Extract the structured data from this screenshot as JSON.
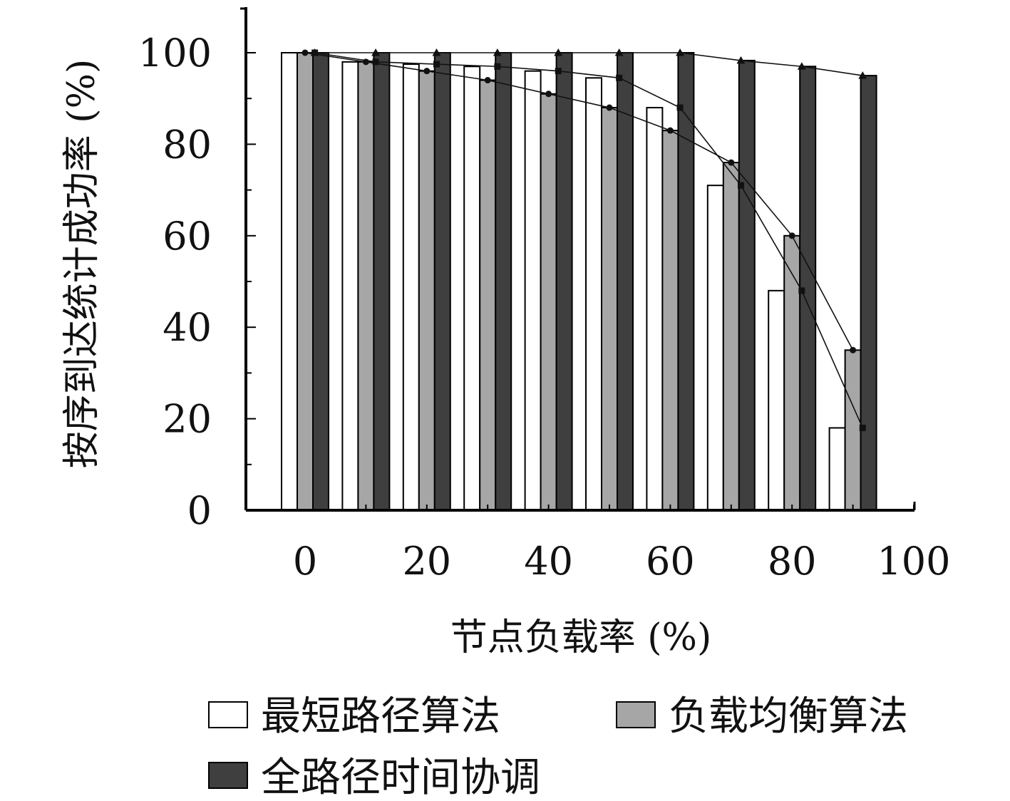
{
  "chart_data": {
    "type": "bar",
    "title": "",
    "xlabel": "节点负载率 (%)",
    "ylabel": "按序到达统计成功率 (%)",
    "x": [
      0,
      10,
      20,
      30,
      40,
      50,
      60,
      70,
      80,
      90
    ],
    "xlim": [
      0,
      100
    ],
    "ylim": [
      0,
      100
    ],
    "xticks": [
      "0",
      "20",
      "40",
      "60",
      "80",
      "100"
    ],
    "yticks": [
      "0",
      "20",
      "40",
      "60",
      "80",
      "100"
    ],
    "grid": false,
    "legend_position": "bottom",
    "series": [
      {
        "name": "最短路径算法",
        "color": "#ffffff",
        "values": [
          100,
          98,
          97.5,
          97,
          96,
          94.5,
          88,
          71,
          48,
          18
        ],
        "line_marker": "square"
      },
      {
        "name": "负载均衡算法",
        "color": "#a6a6a6",
        "values": [
          100,
          98,
          96,
          94,
          91,
          88,
          83,
          76,
          60,
          35
        ],
        "line_marker": "circle"
      },
      {
        "name": "全路径时间协调",
        "color": "#3f3f3f",
        "values": [
          100,
          100,
          100,
          100,
          100,
          100,
          100,
          98.3,
          97,
          95
        ],
        "line_marker": "triangle"
      }
    ]
  }
}
